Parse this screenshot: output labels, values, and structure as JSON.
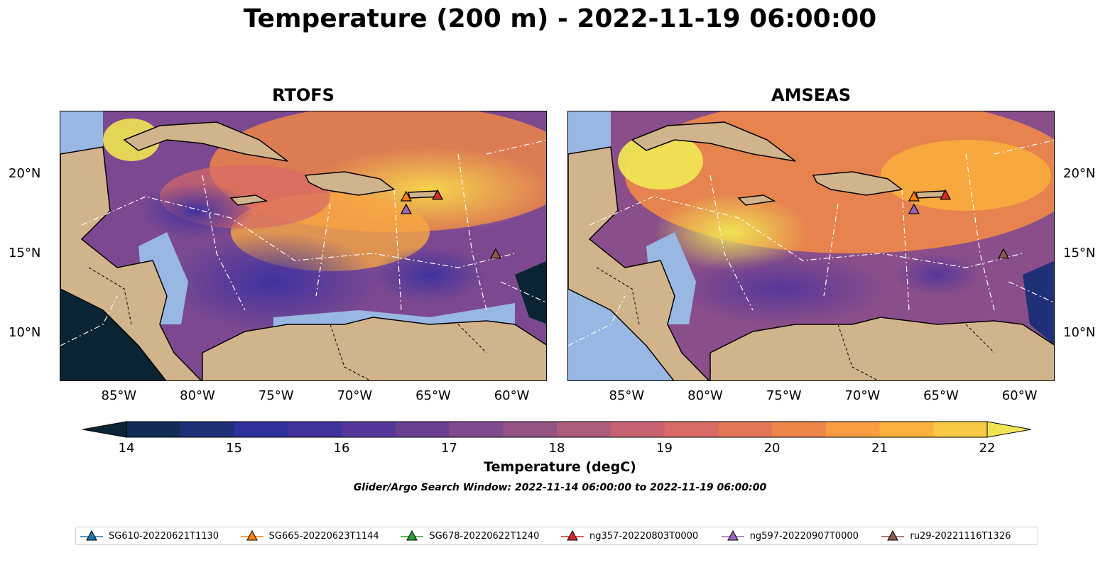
{
  "title": "Temperature (200 m) - 2022-11-19 06:00:00",
  "panels": [
    {
      "title": "RTOFS"
    },
    {
      "title": "AMSEAS"
    }
  ],
  "map_extent": {
    "lon": [
      -89,
      -58
    ],
    "lat": [
      7,
      24
    ]
  },
  "lon_ticks": [
    "85°W",
    "80°W",
    "75°W",
    "70°W",
    "65°W",
    "60°W"
  ],
  "lat_ticks": [
    "20°N",
    "15°N",
    "10°N"
  ],
  "lon_tick_values": [
    -85,
    -80,
    -75,
    -70,
    -65,
    -60
  ],
  "lat_tick_values": [
    20,
    15,
    10
  ],
  "colorbar": {
    "range": [
      14,
      22
    ],
    "labels": [
      "14",
      "15",
      "16",
      "17",
      "18",
      "19",
      "20",
      "21",
      "22"
    ],
    "label_values": [
      14,
      15,
      16,
      17,
      18,
      19,
      20,
      21,
      22
    ],
    "colors": [
      "#0b2434",
      "#112c55",
      "#1f3078",
      "#30309a",
      "#3f329f",
      "#553799",
      "#6a3f92",
      "#7f4a8e",
      "#955384",
      "#ad5c7c",
      "#c66272",
      "#d96a65",
      "#e47557",
      "#ee8549",
      "#f79c40",
      "#fbb13b",
      "#f7c944",
      "#f0e453"
    ],
    "title": "Temperature (degC)"
  },
  "search_window": "Glider/Argo Search Window: 2022-11-14 06:00:00 to 2022-11-19 06:00:00",
  "colors": {
    "land": "#d2b48c",
    "shelf": "#98b7e2",
    "dark_ocean": "#0b2434"
  },
  "legend": [
    {
      "label": "SG610-20220621T1130",
      "color": "#1f77b4"
    },
    {
      "label": "SG665-20220623T1144",
      "color": "#ff7f0e"
    },
    {
      "label": "SG678-20220622T1240",
      "color": "#2ca02c"
    },
    {
      "label": "ng357-20220803T0000",
      "color": "#d62728"
    },
    {
      "label": "ng597-20220907T0000",
      "color": "#9467bd"
    },
    {
      "label": "ru29-20221116T1326",
      "color": "#8c564b"
    }
  ],
  "glider_positions": [
    {
      "lon": -67.0,
      "lat": 18.6,
      "color": "#ff7f0e"
    },
    {
      "lon": -65.0,
      "lat": 18.7,
      "color": "#d62728"
    },
    {
      "lon": -67.0,
      "lat": 17.8,
      "color": "#9467bd"
    },
    {
      "lon": -61.3,
      "lat": 15.0,
      "color": "#8c564b"
    }
  ]
}
